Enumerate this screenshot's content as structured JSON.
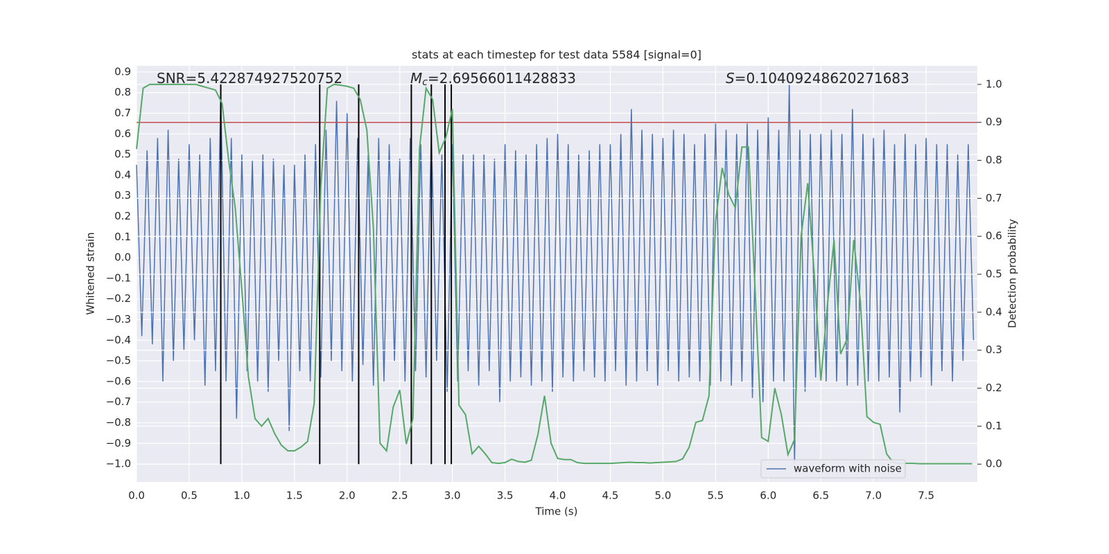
{
  "chart_data": {
    "type": "line",
    "title": "stats at each timestep for test data 5584 [signal=0]",
    "xlabel": "Time (s)",
    "ylabel": "Whitened strain",
    "y2label": "Detection probability",
    "xlim": [
      0,
      7.986
    ],
    "ylim": [
      -1.087,
      0.93
    ],
    "y2lim": [
      -0.047,
      1.049
    ],
    "xticks": [
      {
        "value": 0,
        "label": "0.0"
      },
      {
        "value": 0.5,
        "label": "0.5"
      },
      {
        "value": 1,
        "label": "1.0"
      },
      {
        "value": 1.5,
        "label": "1.5"
      },
      {
        "value": 2,
        "label": "2.0"
      },
      {
        "value": 2.5,
        "label": "2.5"
      },
      {
        "value": 3,
        "label": "3.0"
      },
      {
        "value": 3.5,
        "label": "3.5"
      },
      {
        "value": 4,
        "label": "4.0"
      },
      {
        "value": 4.5,
        "label": "4.5"
      },
      {
        "value": 5,
        "label": "5.0"
      },
      {
        "value": 5.5,
        "label": "5.5"
      },
      {
        "value": 6,
        "label": "6.0"
      },
      {
        "value": 6.5,
        "label": "6.5"
      },
      {
        "value": 7,
        "label": "7.0"
      },
      {
        "value": 7.5,
        "label": "7.5"
      }
    ],
    "yticks": [
      {
        "value": -1,
        "label": "−1.0"
      },
      {
        "value": -0.9,
        "label": "−0.9"
      },
      {
        "value": -0.8,
        "label": "−0.8"
      },
      {
        "value": -0.7,
        "label": "−0.7"
      },
      {
        "value": -0.6,
        "label": "−0.6"
      },
      {
        "value": -0.5,
        "label": "−0.5"
      },
      {
        "value": -0.4,
        "label": "−0.4"
      },
      {
        "value": -0.3,
        "label": "−0.3"
      },
      {
        "value": -0.2,
        "label": "−0.2"
      },
      {
        "value": -0.1,
        "label": "−0.1"
      },
      {
        "value": 0,
        "label": "0.0"
      },
      {
        "value": 0.1,
        "label": "0.1"
      },
      {
        "value": 0.2,
        "label": "0.2"
      },
      {
        "value": 0.3,
        "label": "0.3"
      },
      {
        "value": 0.4,
        "label": "0.4"
      },
      {
        "value": 0.5,
        "label": "0.5"
      },
      {
        "value": 0.6,
        "label": "0.6"
      },
      {
        "value": 0.7,
        "label": "0.7"
      },
      {
        "value": 0.8,
        "label": "0.8"
      },
      {
        "value": 0.9,
        "label": "0.9"
      }
    ],
    "y2ticks": [
      {
        "value": 0,
        "label": "0.0"
      },
      {
        "value": 0.1,
        "label": "0.1"
      },
      {
        "value": 0.2,
        "label": "0.2"
      },
      {
        "value": 0.3,
        "label": "0.3"
      },
      {
        "value": 0.4,
        "label": "0.4"
      },
      {
        "value": 0.5,
        "label": "0.5"
      },
      {
        "value": 0.6,
        "label": "0.6"
      },
      {
        "value": 0.7,
        "label": "0.7"
      },
      {
        "value": 0.8,
        "label": "0.8"
      },
      {
        "value": 0.9,
        "label": "0.9"
      },
      {
        "value": 1,
        "label": "1.0"
      }
    ],
    "grid": true,
    "background": "#eaeaf2",
    "legend": "lower right",
    "annotations": [
      {
        "text": "SNR=5.422874927520752"
      },
      {
        "symbol": "M",
        "subscript": "c",
        "text": "=2.69566011428833"
      },
      {
        "symbol": "S",
        "text": "=0.10409248620271683"
      }
    ],
    "series": [
      {
        "name": "waveform with noise",
        "color": "#4c72b0",
        "x": [
          0,
          0.05,
          0.1,
          0.15,
          0.2,
          0.25,
          0.3,
          0.35,
          0.4,
          0.45,
          0.5,
          0.55,
          0.6,
          0.65,
          0.7,
          0.75,
          0.8,
          0.85,
          0.9,
          0.95,
          1,
          1.05,
          1.1,
          1.15,
          1.2,
          1.25,
          1.3,
          1.35,
          1.4,
          1.45,
          1.5,
          1.55,
          1.6,
          1.65,
          1.7,
          1.75,
          1.8,
          1.85,
          1.9,
          1.95,
          2,
          2.05,
          2.1,
          2.15,
          2.2,
          2.25,
          2.3,
          2.35,
          2.4,
          2.45,
          2.5,
          2.55,
          2.6,
          2.65,
          2.7,
          2.75,
          2.8,
          2.85,
          2.9,
          2.95,
          3,
          3.05,
          3.1,
          3.15,
          3.2,
          3.25,
          3.3,
          3.35,
          3.4,
          3.45,
          3.5,
          3.55,
          3.6,
          3.65,
          3.7,
          3.75,
          3.8,
          3.85,
          3.9,
          3.95,
          4,
          4.05,
          4.1,
          4.15,
          4.2,
          4.25,
          4.3,
          4.35,
          4.4,
          4.45,
          4.5,
          4.55,
          4.6,
          4.65,
          4.7,
          4.75,
          4.8,
          4.85,
          4.9,
          4.95,
          5,
          5.05,
          5.1,
          5.15,
          5.2,
          5.25,
          5.3,
          5.35,
          5.4,
          5.45,
          5.5,
          5.55,
          5.6,
          5.65,
          5.7,
          5.75,
          5.8,
          5.85,
          5.9,
          5.95,
          6,
          6.05,
          6.1,
          6.15,
          6.2,
          6.25,
          6.3,
          6.35,
          6.4,
          6.45,
          6.5,
          6.55,
          6.6,
          6.65,
          6.7,
          6.75,
          6.8,
          6.85,
          6.9,
          6.95,
          7,
          7.05,
          7.1,
          7.15,
          7.2,
          7.25,
          7.3,
          7.35,
          7.4,
          7.45,
          7.5,
          7.55,
          7.6,
          7.65,
          7.7,
          7.75,
          7.8,
          7.85,
          7.9,
          7.95
        ],
        "values": [
          0.45,
          -0.38,
          0.52,
          -0.42,
          0.58,
          -0.6,
          0.62,
          -0.5,
          0.48,
          -0.45,
          0.55,
          -0.4,
          0.5,
          -0.62,
          0.58,
          -0.55,
          0.8,
          -0.6,
          0.58,
          -0.78,
          0.5,
          -0.55,
          0.47,
          -0.6,
          0.5,
          -0.65,
          0.48,
          -0.5,
          0.45,
          -0.84,
          0.45,
          -0.55,
          0.5,
          -0.6,
          0.55,
          -0.58,
          0.62,
          -0.5,
          0.76,
          -0.55,
          0.7,
          -0.6,
          0.58,
          -0.52,
          0.5,
          -0.62,
          0.58,
          -0.6,
          0.55,
          -0.5,
          0.48,
          -0.6,
          0.58,
          -0.55,
          0.55,
          -0.58,
          0.62,
          -0.5,
          0.5,
          -0.65,
          0.55,
          -0.6,
          0.5,
          -0.55,
          0.5,
          -0.62,
          0.5,
          -0.55,
          0.48,
          -0.7,
          0.55,
          -0.6,
          0.52,
          -0.58,
          0.5,
          -0.62,
          0.55,
          -0.6,
          0.58,
          -0.65,
          0.6,
          -0.58,
          0.55,
          -0.6,
          0.5,
          -0.55,
          0.52,
          -0.58,
          0.55,
          -0.6,
          0.55,
          -0.55,
          0.6,
          -0.62,
          0.72,
          -0.6,
          0.62,
          -0.55,
          0.6,
          -0.62,
          0.58,
          -0.55,
          0.62,
          -0.6,
          0.6,
          -0.58,
          0.55,
          -0.6,
          0.6,
          -0.62,
          0.65,
          -0.6,
          0.62,
          -0.62,
          0.6,
          -0.6,
          0.65,
          -0.68,
          0.62,
          -0.7,
          0.68,
          -0.6,
          0.62,
          -0.6,
          0.84,
          -1.0,
          0.62,
          -0.65,
          0.6,
          -0.58,
          0.6,
          -0.6,
          0.62,
          -0.6,
          0.6,
          -0.62,
          0.72,
          -0.62,
          0.6,
          -0.6,
          0.58,
          -0.6,
          0.62,
          -0.58,
          0.55,
          -0.75,
          0.6,
          -0.6,
          0.55,
          -0.58,
          0.58,
          -0.62,
          0.55,
          -0.55,
          0.55,
          -0.6,
          0.5,
          -0.5,
          0.55,
          -0.4
        ]
      },
      {
        "color": "#55a868",
        "axis": "y2",
        "x": [
          0,
          0.0625,
          0.125,
          0.1875,
          0.25,
          0.3125,
          0.375,
          0.4375,
          0.5,
          0.5625,
          0.625,
          0.6875,
          0.75,
          0.8125,
          0.875,
          0.9375,
          1,
          1.0625,
          1.125,
          1.1875,
          1.25,
          1.3125,
          1.375,
          1.4375,
          1.5,
          1.5625,
          1.625,
          1.6875,
          1.75,
          1.8125,
          1.875,
          1.9375,
          2,
          2.0625,
          2.125,
          2.1875,
          2.25,
          2.3125,
          2.375,
          2.4375,
          2.5,
          2.5625,
          2.625,
          2.6875,
          2.75,
          2.8125,
          2.875,
          2.9375,
          3,
          3.0625,
          3.125,
          3.1875,
          3.25,
          3.3125,
          3.375,
          3.4375,
          3.5,
          3.5625,
          3.625,
          3.6875,
          3.75,
          3.8125,
          3.875,
          3.9375,
          4,
          4.0625,
          4.125,
          4.1875,
          4.25,
          4.3125,
          4.375,
          4.4375,
          4.5,
          4.5625,
          4.625,
          4.6875,
          4.75,
          4.8125,
          4.875,
          4.9375,
          5,
          5.0625,
          5.125,
          5.1875,
          5.25,
          5.3125,
          5.375,
          5.4375,
          5.5,
          5.5625,
          5.625,
          5.6875,
          5.75,
          5.8125,
          5.875,
          5.9375,
          6,
          6.0625,
          6.125,
          6.1875,
          6.25,
          6.3125,
          6.375,
          6.4375,
          6.5,
          6.5625,
          6.625,
          6.6875,
          6.75,
          6.8125,
          6.875,
          6.9375,
          7,
          7.0625,
          7.125,
          7.1875,
          7.25,
          7.3125,
          7.375,
          7.4375,
          7.5,
          7.5625,
          7.625,
          7.6875,
          7.75,
          7.8125,
          7.875,
          7.9375
        ],
        "values": [
          0.83,
          0.99,
          1.0,
          1.0,
          1.0,
          1.0,
          1.0,
          1.0,
          1.0,
          1.0,
          0.995,
          0.99,
          0.985,
          0.95,
          0.8,
          0.675,
          0.46,
          0.23,
          0.12,
          0.1,
          0.12,
          0.08,
          0.05,
          0.035,
          0.035,
          0.045,
          0.06,
          0.16,
          0.73,
          0.99,
          1.0,
          0.998,
          0.995,
          0.99,
          0.96,
          0.88,
          0.62,
          0.055,
          0.035,
          0.15,
          0.195,
          0.053,
          0.12,
          0.83,
          0.99,
          0.96,
          0.82,
          0.86,
          0.935,
          0.155,
          0.13,
          0.027,
          0.047,
          0.027,
          0.004,
          0.002,
          0.004,
          0.013,
          0.007,
          0.005,
          0.01,
          0.078,
          0.18,
          0.055,
          0.015,
          0.012,
          0.012,
          0.004,
          0.002,
          0.002,
          0.002,
          0.002,
          0.002,
          0.003,
          0.004,
          0.005,
          0.004,
          0.004,
          0.003,
          0.004,
          0.005,
          0.006,
          0.007,
          0.014,
          0.045,
          0.11,
          0.115,
          0.18,
          0.64,
          0.78,
          0.71,
          0.675,
          0.835,
          0.835,
          0.46,
          0.07,
          0.06,
          0.2,
          0.13,
          0.025,
          0.065,
          0.6,
          0.74,
          0.5,
          0.22,
          0.42,
          0.59,
          0.29,
          0.33,
          0.59,
          0.43,
          0.125,
          0.11,
          0.105,
          0.027,
          0.004,
          0.002,
          0.002,
          0.002,
          0.001,
          0.001,
          0.001,
          0.001,
          0.001,
          0.001,
          0.001,
          0.001,
          0.001
        ]
      }
    ],
    "threshold": {
      "value": 0.9,
      "axis": "y2",
      "color": "#c44e52"
    },
    "vlines": {
      "x": [
        0.8,
        1.74,
        2.11,
        2.61,
        2.8,
        2.93,
        2.99
      ],
      "ymin": 0,
      "ymax": 1,
      "axis": "y2",
      "color": "#000000"
    }
  }
}
